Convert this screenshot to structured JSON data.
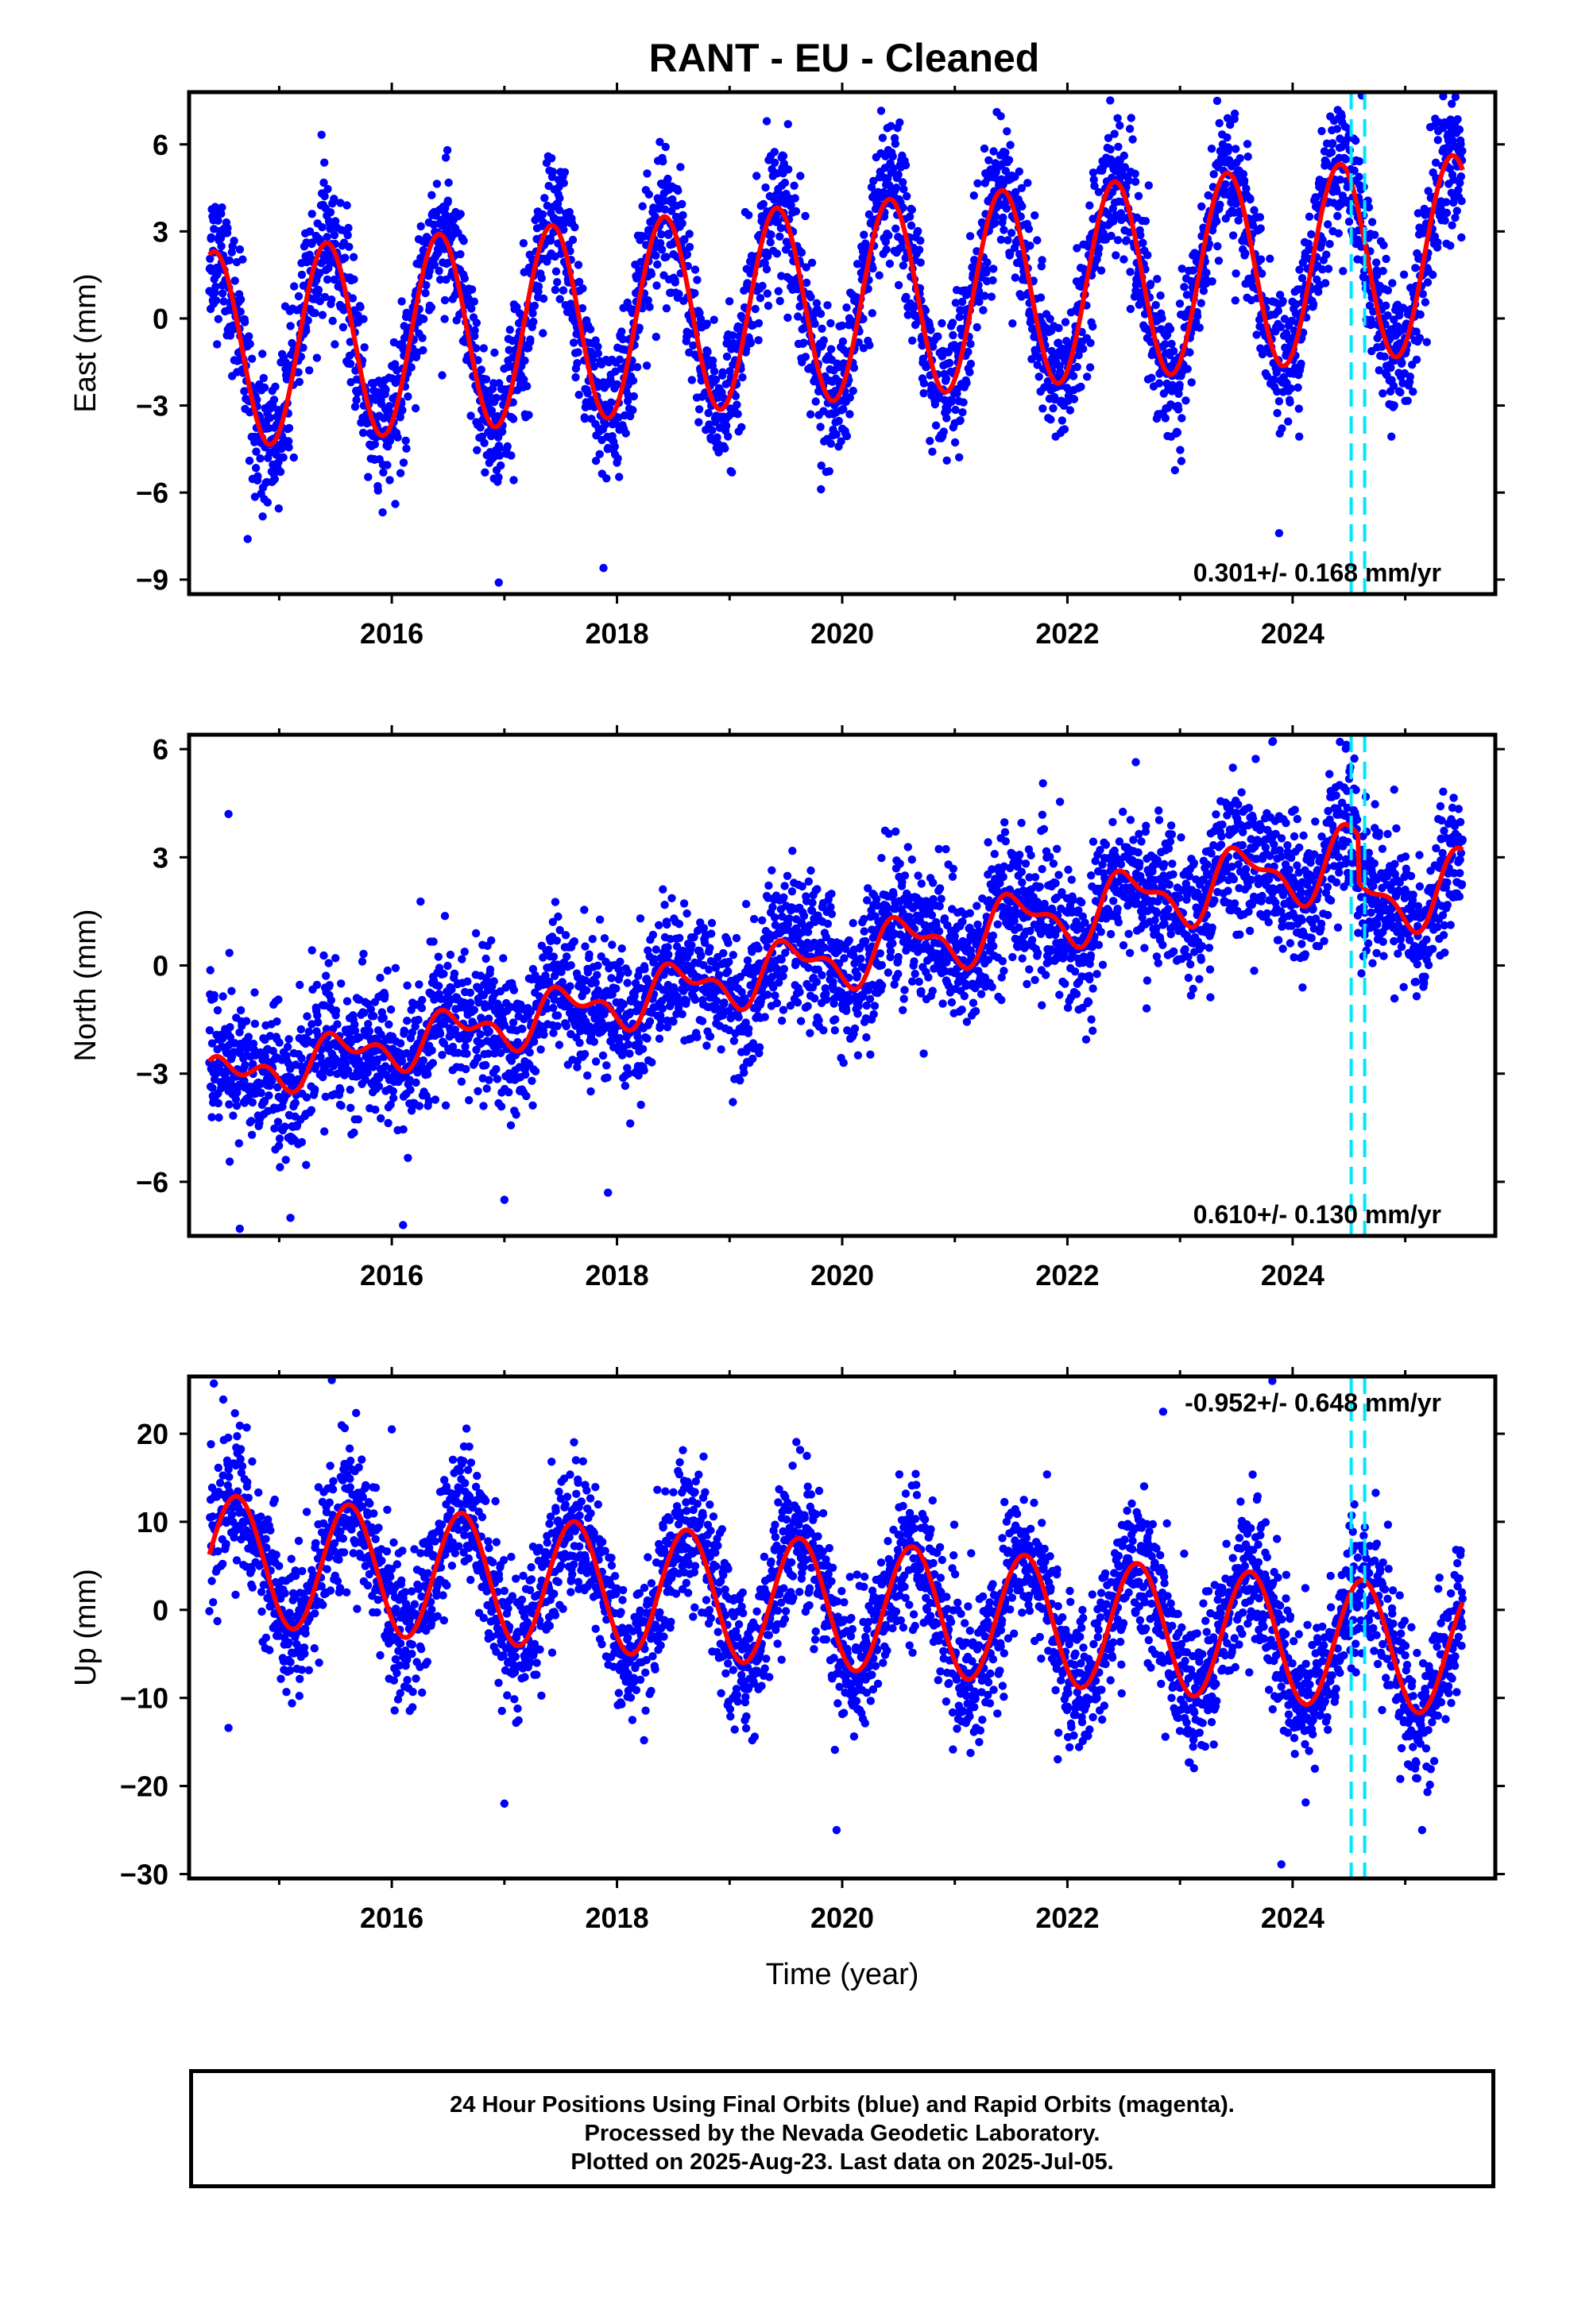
{
  "title": "RANT  - EU - Cleaned",
  "colors": {
    "final_orbits": "#0000ff",
    "model_fit": "#ff0000",
    "event_markers": "#00e5ff",
    "frame": "#000000"
  },
  "footer": {
    "line1": "24 Hour Positions Using Final Orbits (blue) and Rapid Orbits (magenta).",
    "line2": "Processed by the Nevada Geodetic Laboratory.",
    "line3": "Plotted on 2025-Aug-23. Last data on 2025-Jul-05."
  },
  "chart_data": [
    {
      "type": "scatter",
      "component": "east",
      "ylabel": "East (mm)",
      "xlabel": "",
      "xlim": [
        2014.2,
        2025.8
      ],
      "ylim": [
        -9.5,
        7.8
      ],
      "xticks": [
        2016,
        2018,
        2020,
        2022,
        2024
      ],
      "xtick_labels": [
        "2016",
        "2018",
        "2020",
        "2022",
        "2024"
      ],
      "yticks": [
        -9,
        -6,
        -3,
        0,
        3,
        6
      ],
      "ytick_labels": [
        "−9",
        "−6",
        "−3",
        "0",
        "3",
        "6"
      ],
      "rate_label": "0.301+/- 0.168 mm/yr",
      "rate_label_position": "bottom-right",
      "event_lines_x": [
        2024.52,
        2024.64
      ],
      "model": {
        "offset": -1.1,
        "trend": 0.301,
        "t0": 2014.4,
        "annual_amp": 3.4,
        "annual_peak": 2014.42,
        "annual_amp_growth": 0.0,
        "semi_amp": 0.0,
        "semi_phase": 0.0,
        "steps": []
      },
      "scatter_noise": 1.2,
      "outliers": [
        {
          "x": 2016.95,
          "y": -9.1
        },
        {
          "x": 2017.88,
          "y": -8.6
        },
        {
          "x": 2023.88,
          "y": -7.4
        },
        {
          "x": 2014.72,
          "y": -7.6
        },
        {
          "x": 2023.33,
          "y": 7.5
        },
        {
          "x": 2019.33,
          "y": 6.8
        },
        {
          "x": 2025.45,
          "y": 6.8
        }
      ]
    },
    {
      "type": "scatter",
      "component": "north",
      "ylabel": "North (mm)",
      "xlabel": "",
      "xlim": [
        2014.2,
        2025.8
      ],
      "ylim": [
        -7.5,
        6.4
      ],
      "xticks": [
        2016,
        2018,
        2020,
        2022,
        2024
      ],
      "xtick_labels": [
        "2016",
        "2018",
        "2020",
        "2022",
        "2024"
      ],
      "yticks": [
        -6,
        -3,
        0,
        3,
        6
      ],
      "ytick_labels": [
        "−6",
        "−3",
        "0",
        "3",
        "6"
      ],
      "rate_label": "0.610+/- 0.130 mm/yr",
      "rate_label_position": "bottom-right",
      "event_lines_x": [
        2024.52,
        2024.64
      ],
      "model": {
        "offset": -3.2,
        "trend": 0.61,
        "t0": 2014.4,
        "annual_amp": 0.45,
        "annual_peak": 2014.55,
        "annual_amp_growth": 0.04,
        "semi_amp": 0.35,
        "semi_phase": 0.3,
        "steps": [
          {
            "x": 2024.58,
            "dy": -1.3
          }
        ]
      },
      "scatter_noise": 0.95,
      "outliers": [
        {
          "x": 2014.55,
          "y": 4.2
        },
        {
          "x": 2014.65,
          "y": -7.3
        },
        {
          "x": 2016.1,
          "y": -7.2
        },
        {
          "x": 2015.1,
          "y": -7.0
        },
        {
          "x": 2023.82,
          "y": 6.2
        },
        {
          "x": 2024.42,
          "y": 6.2
        },
        {
          "x": 2017.0,
          "y": -6.5
        },
        {
          "x": 2017.92,
          "y": -6.3
        }
      ]
    },
    {
      "type": "scatter",
      "component": "up",
      "ylabel": "Up (mm)",
      "xlabel": "Time (year)",
      "xlim": [
        2014.2,
        2025.8
      ],
      "ylim": [
        -30.5,
        26.5
      ],
      "xticks": [
        2016,
        2018,
        2020,
        2022,
        2024
      ],
      "xtick_labels": [
        "2016",
        "2018",
        "2020",
        "2022",
        "2024"
      ],
      "yticks": [
        -30,
        -20,
        -10,
        0,
        10,
        20
      ],
      "ytick_labels": [
        "−30",
        "−20",
        "−10",
        "0",
        "10",
        "20"
      ],
      "rate_label": "-0.952+/- 0.648 mm/yr",
      "rate_label_position": "top-right",
      "event_lines_x": [
        2024.52,
        2024.64
      ],
      "model": {
        "offset": 5.8,
        "trend": -0.952,
        "t0": 2014.4,
        "annual_amp": 7.3,
        "annual_peak": 2014.62,
        "annual_amp_growth": 0.0,
        "semi_amp": 0.0,
        "semi_phase": 0.0,
        "steps": []
      },
      "scatter_noise": 4.0,
      "outliers": [
        {
          "x": 2014.42,
          "y": 25.7
        },
        {
          "x": 2014.55,
          "y": -13.4
        },
        {
          "x": 2023.82,
          "y": 26.0
        },
        {
          "x": 2022.85,
          "y": 22.5
        },
        {
          "x": 2019.95,
          "y": -25.0
        },
        {
          "x": 2023.9,
          "y": -28.9
        },
        {
          "x": 2025.15,
          "y": -25.0
        },
        {
          "x": 2017.0,
          "y": -22.0
        },
        {
          "x": 2016.0,
          "y": 20.5
        }
      ]
    }
  ]
}
